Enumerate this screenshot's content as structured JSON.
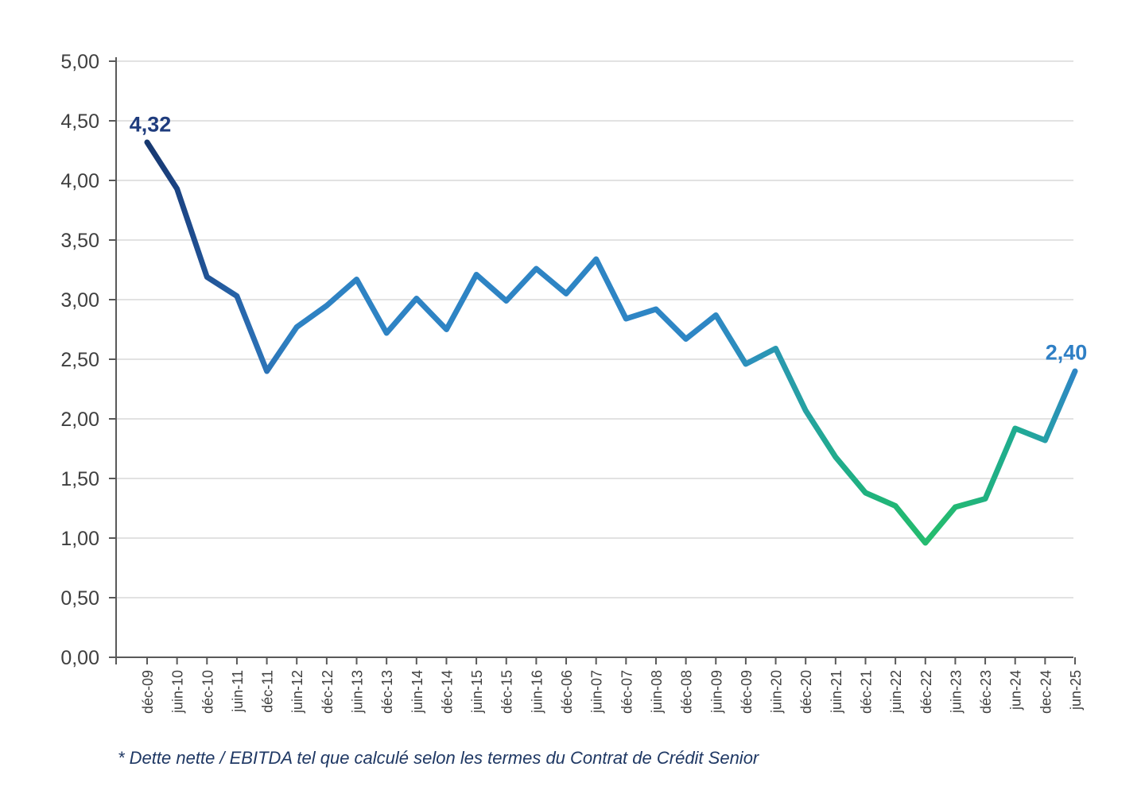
{
  "chart_data": {
    "type": "line",
    "categories": [
      "déc-09",
      "juin-10",
      "déc-10",
      "juin-11",
      "déc-11",
      "juin-12",
      "déc-12",
      "juin-13",
      "déc-13",
      "juin-14",
      "déc-14",
      "juin-15",
      "déc-15",
      "juin-16",
      "déc-06",
      "juin-07",
      "déc-07",
      "juin-08",
      "déc-08",
      "juin-09",
      "déc-09",
      "juin-20",
      "déc-20",
      "juin-21",
      "déc-21",
      "juin-22",
      "déc-22",
      "juin-23",
      "déc-23",
      "jun-24",
      "dec-24",
      "jun-25"
    ],
    "values": [
      4.32,
      3.93,
      3.19,
      3.03,
      2.4,
      2.77,
      2.95,
      3.17,
      2.72,
      3.01,
      2.75,
      3.21,
      2.99,
      3.26,
      3.05,
      3.34,
      2.84,
      2.92,
      2.67,
      2.87,
      2.46,
      2.59,
      2.07,
      1.68,
      1.38,
      1.27,
      0.96,
      1.26,
      1.33,
      1.92,
      1.82,
      2.4
    ],
    "ylim": [
      0,
      5
    ],
    "y_tick_step": 0.5,
    "y_tick_labels": [
      "0,00",
      "0,50",
      "1,00",
      "1,50",
      "2,00",
      "2,50",
      "3,00",
      "3,50",
      "4,00",
      "4,50",
      "5,00"
    ],
    "grid": "horizontal",
    "legend": "none",
    "start_label": {
      "text": "4,32",
      "color": "#1F3C7D"
    },
    "end_label": {
      "text": "2,40",
      "color": "#2E7FC5"
    },
    "line_gradient": [
      [
        "0",
        "#17386F"
      ],
      [
        "0.03",
        "#1B4382"
      ],
      [
        "0.07",
        "#225699"
      ],
      [
        "0.11",
        "#2A6BB0"
      ],
      [
        "0.16",
        "#2E82C3"
      ],
      [
        "0.60",
        "#2E86C5"
      ],
      [
        "0.655",
        "#2C92BA"
      ],
      [
        "0.705",
        "#27A0A4"
      ],
      [
        "0.74",
        "#21AB8E"
      ],
      [
        "0.775",
        "#1FB17F"
      ],
      [
        "0.815",
        "#22B873"
      ],
      [
        "0.845",
        "#25BC6F"
      ],
      [
        "0.875",
        "#23B876"
      ],
      [
        "0.905",
        "#21B182"
      ],
      [
        "0.935",
        "#1FAC90"
      ],
      [
        "0.965",
        "#26A1A6"
      ],
      [
        "1",
        "#2E86C5"
      ]
    ],
    "colors": {
      "gridline": "#D9D9D9",
      "axis": "#595959",
      "tick_label": "#3F3F3F"
    }
  },
  "footnote": {
    "text": "* Dette nette / EBITDA tel que calculé selon les termes du Contrat de Crédit Senior",
    "color": "#1F3864"
  }
}
